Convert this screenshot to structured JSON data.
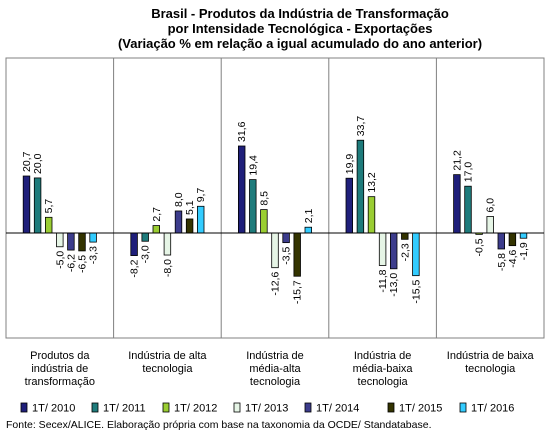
{
  "chart_data": {
    "type": "bar",
    "title_lines": [
      "Brasil - Produtos da Indústria de Transformação",
      "por Intensidade Tecnológica - Exportações",
      "(Variação % em relação a igual acumulado do ano anterior)"
    ],
    "categories": [
      [
        "Produtos da",
        "indústria de",
        "transformação"
      ],
      [
        "Indústria de alta",
        "tecnologia"
      ],
      [
        "Indústria de",
        "média-alta",
        "tecnologia"
      ],
      [
        "Indústria de",
        "média-baixa",
        "tecnologia"
      ],
      [
        "Indústria de baixa",
        "tecnologia"
      ]
    ],
    "series": [
      {
        "name": "1T/ 2010",
        "color": "#1f1f7a",
        "values": [
          20.7,
          -8.2,
          31.6,
          19.9,
          21.2
        ],
        "labels": [
          "20,7",
          "-8,2",
          "31,6",
          "19,9",
          "21,2"
        ]
      },
      {
        "name": "1T/ 2011",
        "color": "#1e7b7b",
        "values": [
          20.0,
          -3.0,
          19.4,
          33.7,
          17.0
        ],
        "labels": [
          "20,0",
          "-3,0",
          "19,4",
          "33,7",
          "17,0"
        ]
      },
      {
        "name": "1T/ 2012",
        "color": "#9acd32",
        "values": [
          5.7,
          2.7,
          8.5,
          13.2,
          -0.5
        ],
        "labels": [
          "5,7",
          "2,7",
          "8,5",
          "13,2",
          "-0,5"
        ]
      },
      {
        "name": "1T/ 2013",
        "color": "#e6f5e6",
        "values": [
          -5.0,
          -8.0,
          -12.6,
          -11.8,
          6.0
        ],
        "labels": [
          "-5,0",
          "-8,0",
          "-12,6",
          "-11,8",
          "6,0"
        ]
      },
      {
        "name": "1T/ 2014",
        "color": "#3c3c8c",
        "values": [
          -6.2,
          8.0,
          -3.5,
          -13.0,
          -5.8
        ],
        "labels": [
          "-6,2",
          "8,0",
          "-3,5",
          "-13,0",
          "-5,8"
        ]
      },
      {
        "name": "1T/ 2015",
        "color": "#333300",
        "values": [
          -6.5,
          5.1,
          -15.7,
          -2.3,
          -4.6
        ],
        "labels": [
          "-6,5",
          "5,1",
          "-15,7",
          "-2,3",
          "-4,6"
        ]
      },
      {
        "name": "1T/ 2016",
        "color": "#33ccff",
        "values": [
          -3.3,
          9.7,
          2.1,
          -15.5,
          -1.9
        ],
        "labels": [
          "-3,3",
          "9,7",
          "2,1",
          "-15,5",
          "-1,9"
        ]
      }
    ],
    "ylim": [
      -22,
      40
    ],
    "grid": false,
    "legend_position": "bottom",
    "source": "Fonte: Secex/ALICE. Elaboração própria com base na taxonomia da OCDE/ Standatabase."
  }
}
